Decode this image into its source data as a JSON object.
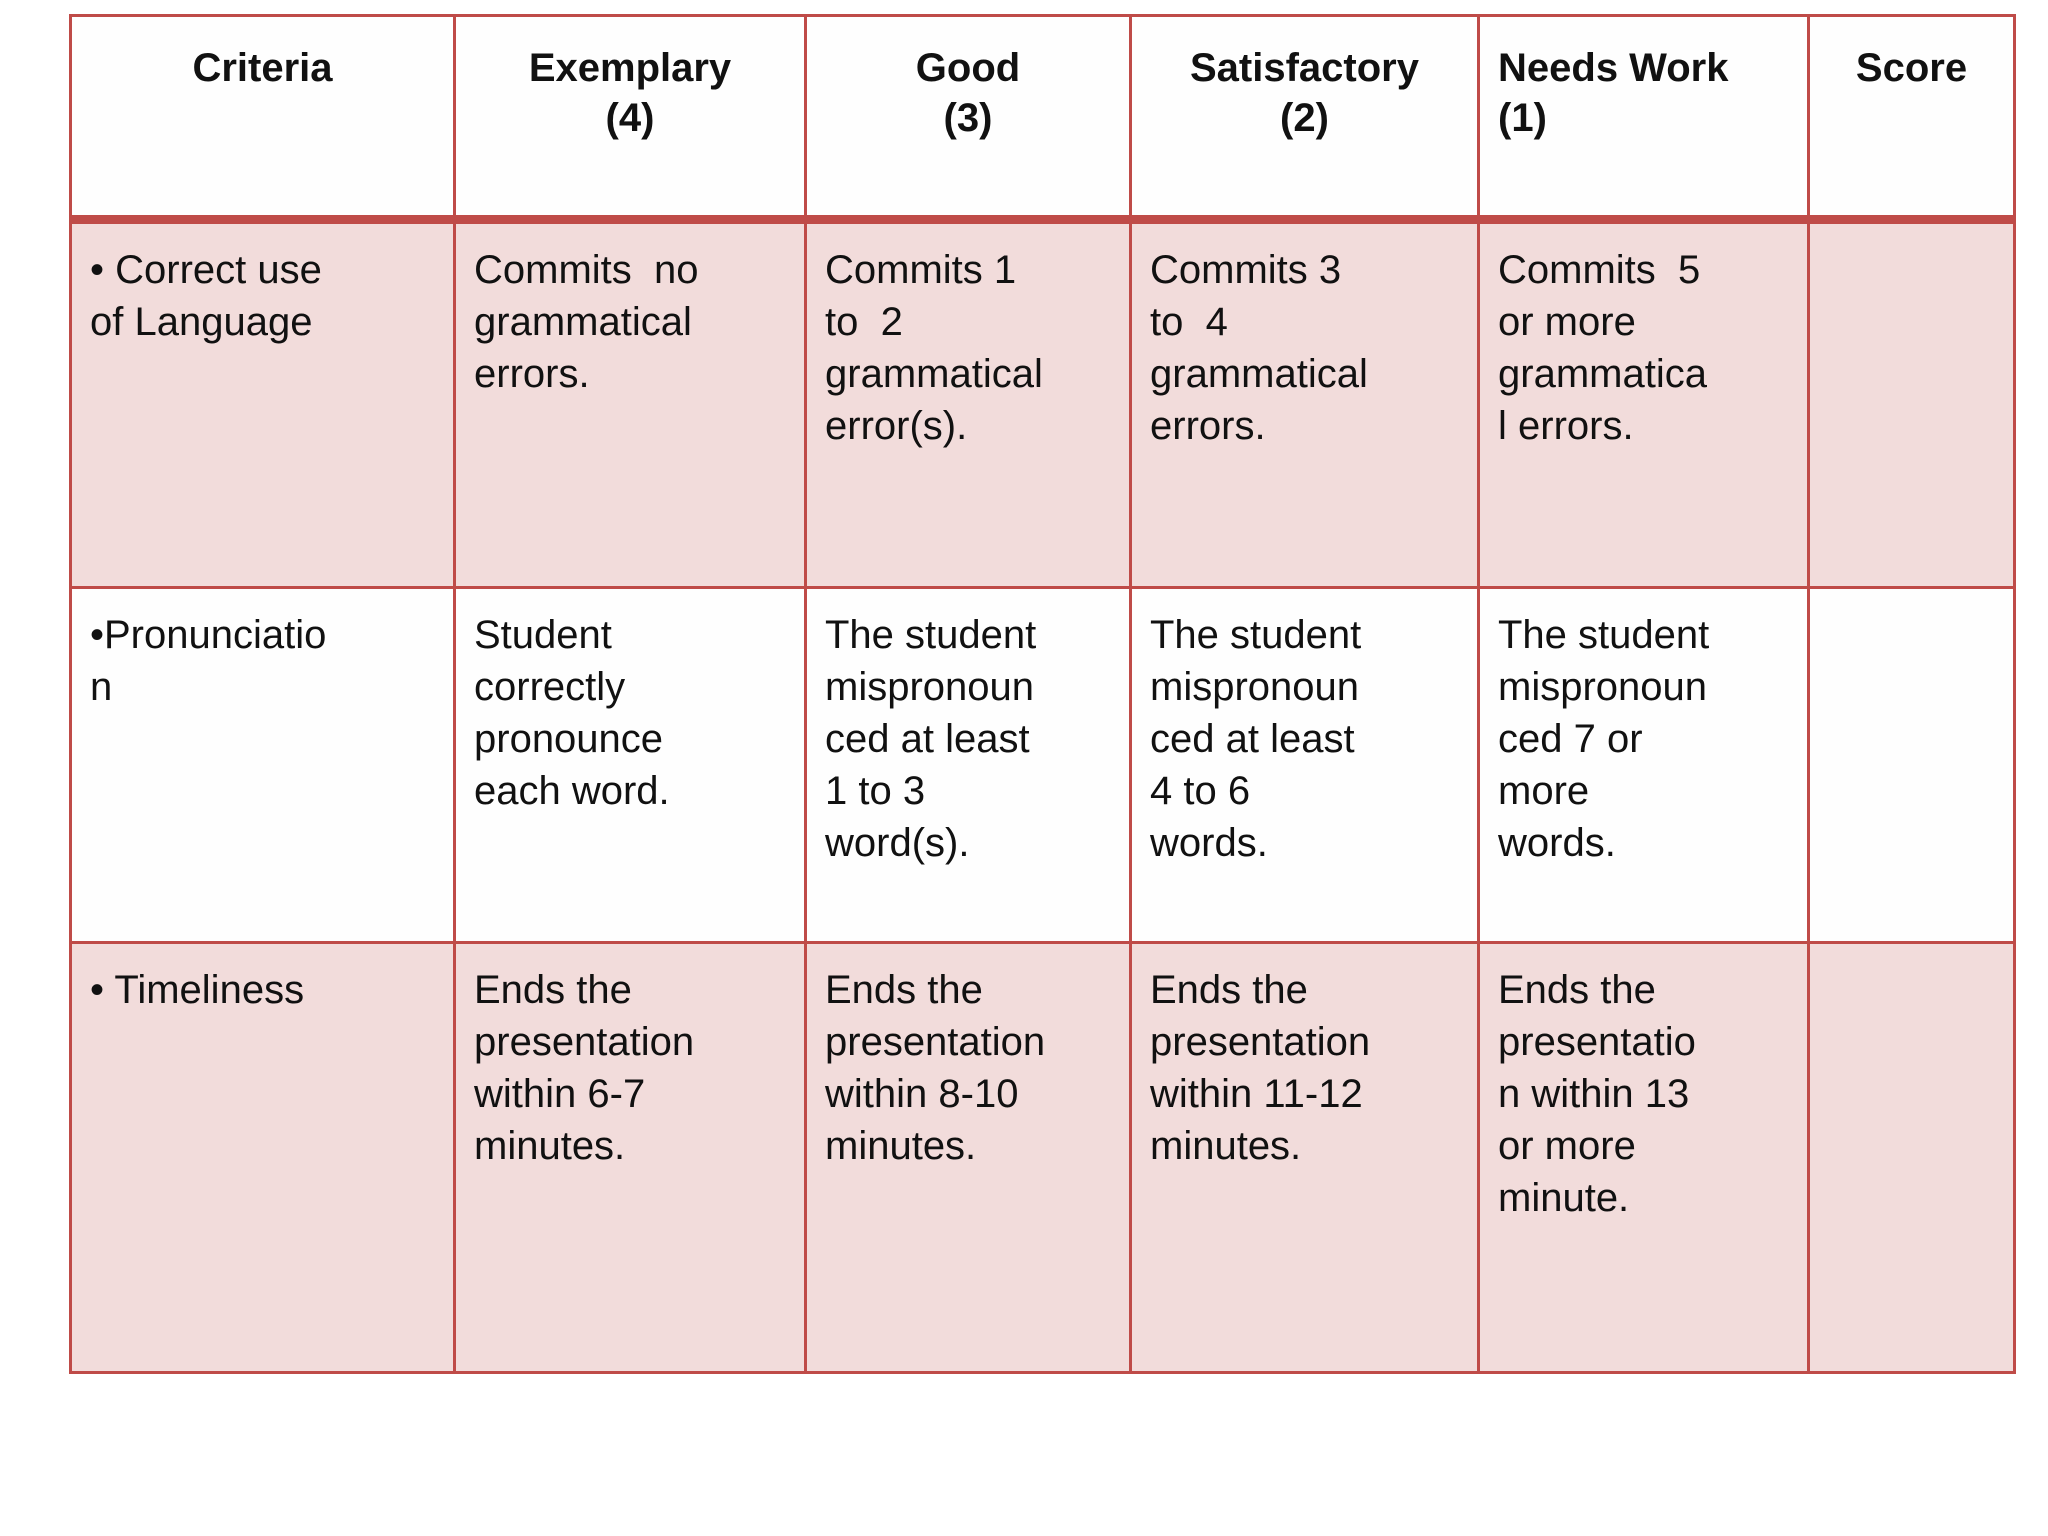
{
  "table": {
    "headers": [
      "Criteria",
      "Exemplary\n(4)",
      "Good\n(3)",
      "Satisfactory\n(2)",
      "Needs Work\n(1)",
      "Score"
    ],
    "rows": [
      {
        "criteria": "• Correct use\nof Language",
        "exemplary": "Commits  no\ngrammatical\nerrors.",
        "good": "Commits 1\nto  2\ngrammatical\nerror(s).",
        "satisfactory": "Commits 3\nto  4\ngrammatical\nerrors.",
        "needs_work": "Commits  5\nor more\ngrammatica\nl errors.",
        "score": ""
      },
      {
        "criteria": "•Pronunciatio\nn",
        "exemplary": "Student\ncorrectly\npronounce\neach word.",
        "good": "The student\nmispronoun\nced at least\n1 to 3\nword(s).",
        "satisfactory": "The student\nmispronoun\nced at least\n4 to 6\nwords.",
        "needs_work": "The student\nmispronoun\nced 7 or\nmore\nwords.",
        "score": ""
      },
      {
        "criteria": "• Timeliness",
        "exemplary": "Ends the\npresentation\nwithin 6-7\nminutes.",
        "good": "Ends the\npresentation\nwithin 8-10\nminutes.",
        "satisfactory": "Ends the\npresentation\nwithin 11-12\nminutes.",
        "needs_work": "Ends the\npresentatio\nn within 13\nor more\nminute.",
        "score": ""
      }
    ]
  },
  "colors": {
    "border_red": "#bf4b48",
    "row_pink": "#f2dcdb",
    "row_white": "#fefefe",
    "text": "#111111"
  }
}
